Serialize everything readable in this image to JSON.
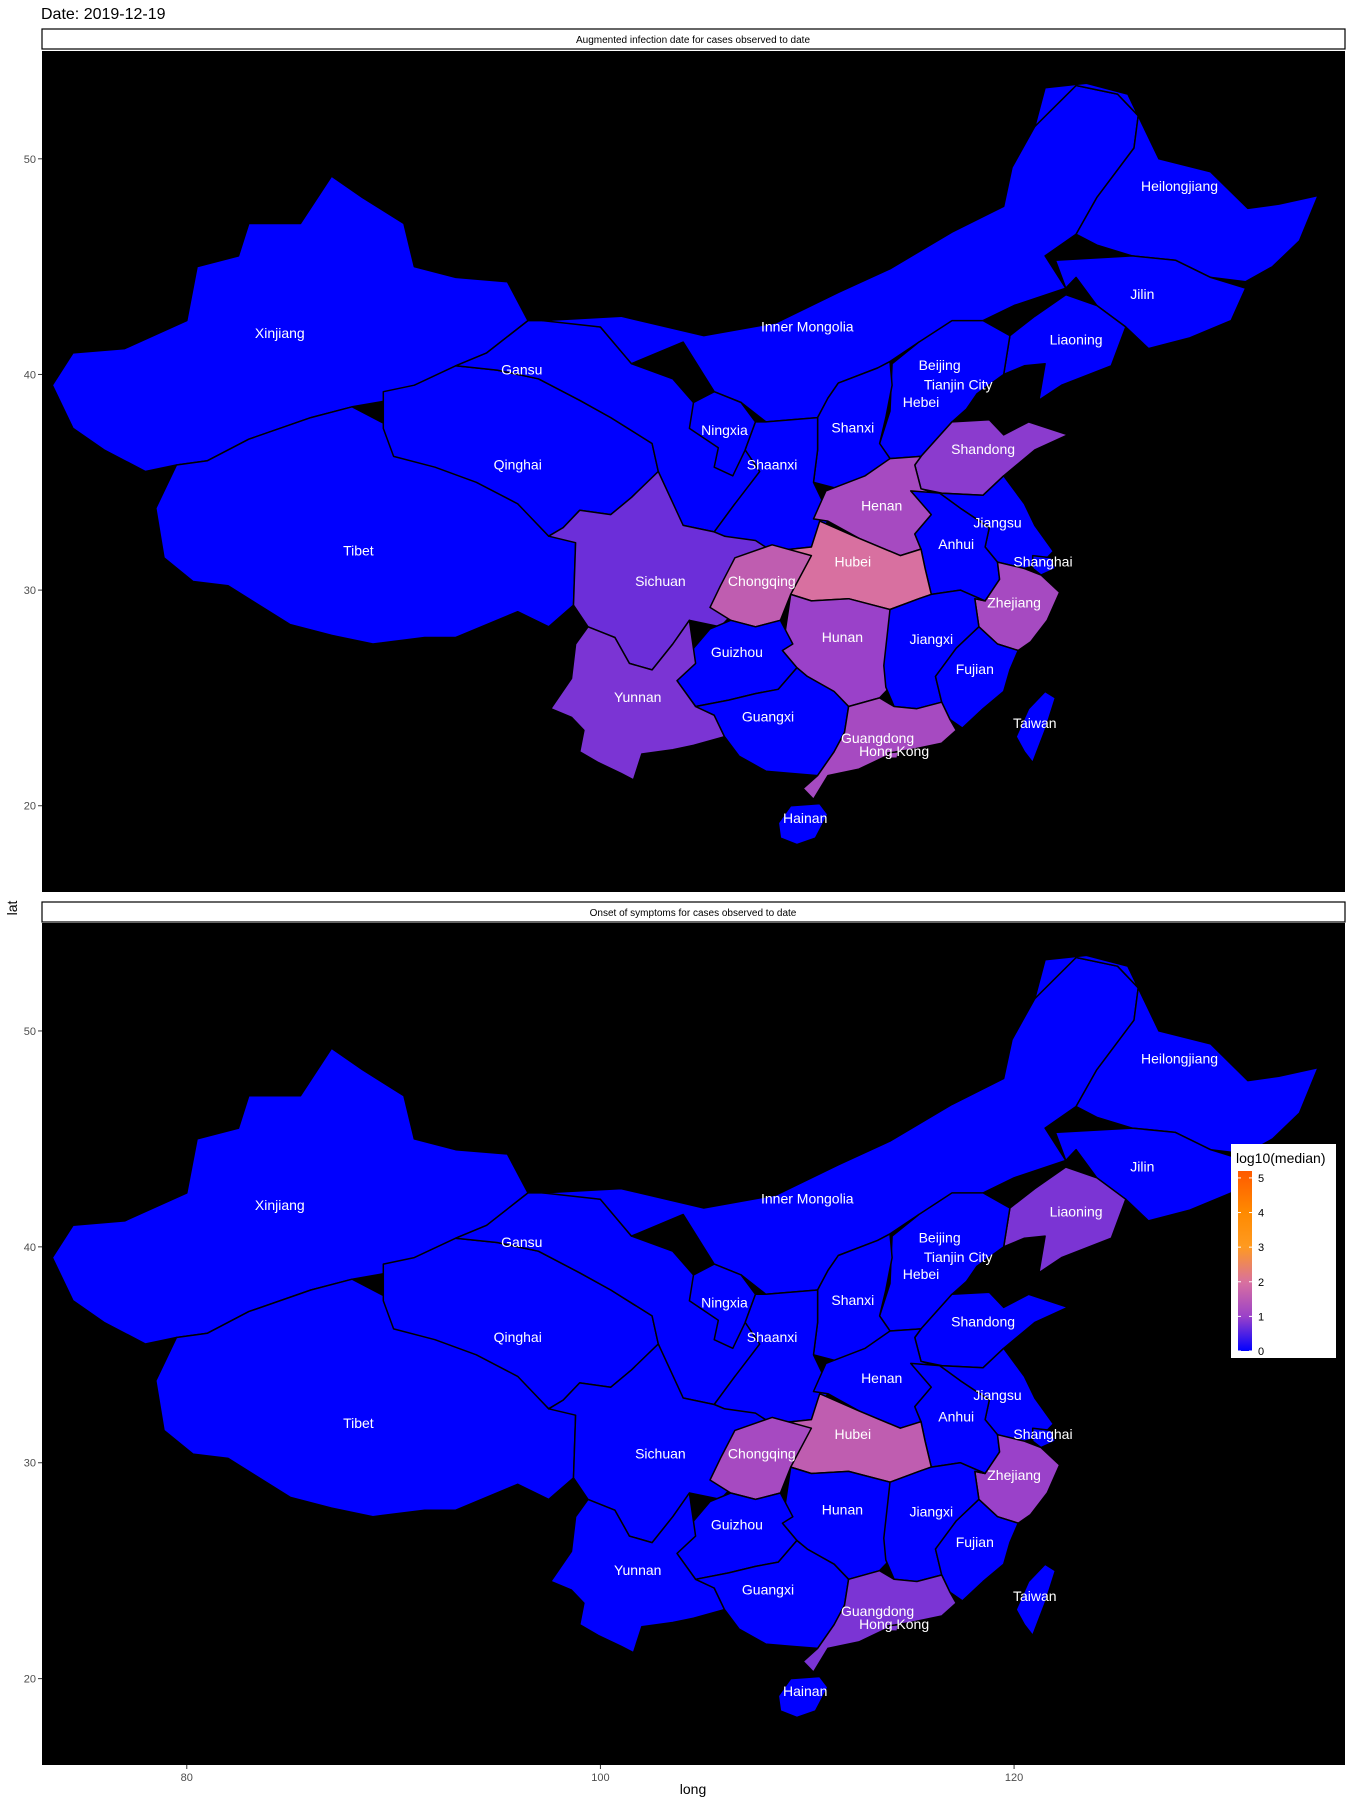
{
  "figure": {
    "title": "Date: 2019-12-19",
    "xlabel": "long",
    "ylabel": "lat"
  },
  "colors": {
    "panel_bg": "#000000",
    "border": "#000000",
    "label_text": "#ffffff",
    "low": "#0000ff",
    "mid": "#c05ab4",
    "high": "#ff6600"
  },
  "chart_data": [
    {
      "type": "heatmap",
      "subtype": "choropleth",
      "title": "Augmented infection date for cases observed to date",
      "xlabel": "long",
      "ylabel": "lat",
      "xlim": [
        73,
        136
      ],
      "ylim": [
        16,
        55
      ],
      "x_ticks": [
        80,
        100,
        120
      ],
      "y_ticks": [
        20,
        30,
        40,
        50
      ],
      "grid": false,
      "regions": [
        {
          "name": "Xinjiang",
          "lon": 84.5,
          "lat": 41.7,
          "value": 0
        },
        {
          "name": "Tibet",
          "lon": 88.3,
          "lat": 31.6,
          "value": 0
        },
        {
          "name": "Qinghai",
          "lon": 96.0,
          "lat": 35.6,
          "value": 0
        },
        {
          "name": "Gansu",
          "lon": 96.2,
          "lat": 40.0,
          "value": 0
        },
        {
          "name": "Inner Mongolia",
          "lon": 110.0,
          "lat": 42.0,
          "value": 0
        },
        {
          "name": "Heilongjiang",
          "lon": 128.0,
          "lat": 48.5,
          "value": 0
        },
        {
          "name": "Jilin",
          "lon": 126.2,
          "lat": 43.5,
          "value": 0
        },
        {
          "name": "Liaoning",
          "lon": 123.0,
          "lat": 41.4,
          "value": 0
        },
        {
          "name": "Beijing",
          "lon": 116.4,
          "lat": 40.2,
          "value": 1.1
        },
        {
          "name": "Tianjin City",
          "lon": 117.3,
          "lat": 39.3,
          "value": 0.9
        },
        {
          "name": "Hebei",
          "lon": 115.5,
          "lat": 38.5,
          "value": 0
        },
        {
          "name": "Shanxi",
          "lon": 112.2,
          "lat": 37.3,
          "value": 0
        },
        {
          "name": "Ningxia",
          "lon": 106.0,
          "lat": 37.2,
          "value": 0
        },
        {
          "name": "Shaanxi",
          "lon": 108.3,
          "lat": 35.6,
          "value": 0
        },
        {
          "name": "Shandong",
          "lon": 118.5,
          "lat": 36.3,
          "value": 0.9
        },
        {
          "name": "Henan",
          "lon": 113.6,
          "lat": 33.7,
          "value": 1.2
        },
        {
          "name": "Jiangsu",
          "lon": 119.2,
          "lat": 32.9,
          "value": 0
        },
        {
          "name": "Anhui",
          "lon": 117.2,
          "lat": 31.9,
          "value": 0
        },
        {
          "name": "Shanghai",
          "lon": 121.4,
          "lat": 31.1,
          "value": 0
        },
        {
          "name": "Hubei",
          "lon": 112.2,
          "lat": 31.1,
          "value": 2.0
        },
        {
          "name": "Sichuan",
          "lon": 102.9,
          "lat": 30.2,
          "value": 0.7
        },
        {
          "name": "Chongqing",
          "lon": 107.8,
          "lat": 30.2,
          "value": 1.6
        },
        {
          "name": "Zhejiang",
          "lon": 120.0,
          "lat": 29.2,
          "value": 1.2
        },
        {
          "name": "Hunan",
          "lon": 111.7,
          "lat": 27.6,
          "value": 1.0
        },
        {
          "name": "Jiangxi",
          "lon": 116.0,
          "lat": 27.5,
          "value": 0
        },
        {
          "name": "Guizhou",
          "lon": 106.6,
          "lat": 26.9,
          "value": 0
        },
        {
          "name": "Fujian",
          "lon": 118.1,
          "lat": 26.1,
          "value": 0
        },
        {
          "name": "Yunnan",
          "lon": 101.8,
          "lat": 24.8,
          "value": 0.8
        },
        {
          "name": "Guangxi",
          "lon": 108.1,
          "lat": 23.9,
          "value": 0
        },
        {
          "name": "Taiwan",
          "lon": 121.0,
          "lat": 23.6,
          "value": 0
        },
        {
          "name": "Guangdong",
          "lon": 113.4,
          "lat": 22.9,
          "value": 1.2
        },
        {
          "name": "Hong Kong",
          "lon": 114.2,
          "lat": 22.3,
          "value": 1.2
        },
        {
          "name": "Hainan",
          "lon": 109.9,
          "lat": 19.2,
          "value": 0
        }
      ]
    },
    {
      "type": "heatmap",
      "subtype": "choropleth",
      "title": "Onset of symptoms for cases observed to date",
      "xlabel": "long",
      "ylabel": "lat",
      "xlim": [
        73,
        136
      ],
      "ylim": [
        16,
        55
      ],
      "x_ticks": [
        80,
        100,
        120
      ],
      "y_ticks": [
        20,
        30,
        40,
        50
      ],
      "grid": false,
      "legend": {
        "title": "log10(median)",
        "position": "right",
        "ticks": [
          0,
          1,
          2,
          3,
          4,
          5
        ],
        "range": [
          0,
          5.2
        ]
      },
      "regions": [
        {
          "name": "Xinjiang",
          "lon": 84.5,
          "lat": 41.7,
          "value": 0
        },
        {
          "name": "Tibet",
          "lon": 88.3,
          "lat": 31.6,
          "value": 0
        },
        {
          "name": "Qinghai",
          "lon": 96.0,
          "lat": 35.6,
          "value": 0
        },
        {
          "name": "Gansu",
          "lon": 96.2,
          "lat": 40.0,
          "value": 0
        },
        {
          "name": "Inner Mongolia",
          "lon": 110.0,
          "lat": 42.0,
          "value": 0
        },
        {
          "name": "Heilongjiang",
          "lon": 128.0,
          "lat": 48.5,
          "value": 0
        },
        {
          "name": "Jilin",
          "lon": 126.2,
          "lat": 43.5,
          "value": 0
        },
        {
          "name": "Liaoning",
          "lon": 123.0,
          "lat": 41.4,
          "value": 0.8
        },
        {
          "name": "Beijing",
          "lon": 116.4,
          "lat": 40.2,
          "value": 0
        },
        {
          "name": "Tianjin City",
          "lon": 117.3,
          "lat": 39.3,
          "value": 0
        },
        {
          "name": "Hebei",
          "lon": 115.5,
          "lat": 38.5,
          "value": 0
        },
        {
          "name": "Shanxi",
          "lon": 112.2,
          "lat": 37.3,
          "value": 0
        },
        {
          "name": "Ningxia",
          "lon": 106.0,
          "lat": 37.2,
          "value": 0
        },
        {
          "name": "Shaanxi",
          "lon": 108.3,
          "lat": 35.6,
          "value": 0
        },
        {
          "name": "Shandong",
          "lon": 118.5,
          "lat": 36.3,
          "value": 0
        },
        {
          "name": "Henan",
          "lon": 113.6,
          "lat": 33.7,
          "value": 0
        },
        {
          "name": "Jiangsu",
          "lon": 119.2,
          "lat": 32.9,
          "value": 0
        },
        {
          "name": "Anhui",
          "lon": 117.2,
          "lat": 31.9,
          "value": 0
        },
        {
          "name": "Shanghai",
          "lon": 121.4,
          "lat": 31.1,
          "value": 0
        },
        {
          "name": "Hubei",
          "lon": 112.2,
          "lat": 31.1,
          "value": 1.6
        },
        {
          "name": "Sichuan",
          "lon": 102.9,
          "lat": 30.2,
          "value": 0
        },
        {
          "name": "Chongqing",
          "lon": 107.8,
          "lat": 30.2,
          "value": 1.2
        },
        {
          "name": "Zhejiang",
          "lon": 120.0,
          "lat": 29.2,
          "value": 1.0
        },
        {
          "name": "Hunan",
          "lon": 111.7,
          "lat": 27.6,
          "value": 0
        },
        {
          "name": "Jiangxi",
          "lon": 116.0,
          "lat": 27.5,
          "value": 0
        },
        {
          "name": "Guizhou",
          "lon": 106.6,
          "lat": 26.9,
          "value": 0
        },
        {
          "name": "Fujian",
          "lon": 118.1,
          "lat": 26.1,
          "value": 0
        },
        {
          "name": "Yunnan",
          "lon": 101.8,
          "lat": 24.8,
          "value": 0
        },
        {
          "name": "Guangxi",
          "lon": 108.1,
          "lat": 23.9,
          "value": 0
        },
        {
          "name": "Taiwan",
          "lon": 121.0,
          "lat": 23.6,
          "value": 0
        },
        {
          "name": "Guangdong",
          "lon": 113.4,
          "lat": 22.9,
          "value": 0.8
        },
        {
          "name": "Hong Kong",
          "lon": 114.2,
          "lat": 22.3,
          "value": 0.8
        },
        {
          "name": "Hainan",
          "lon": 109.9,
          "lat": 19.2,
          "value": 0
        }
      ]
    }
  ]
}
